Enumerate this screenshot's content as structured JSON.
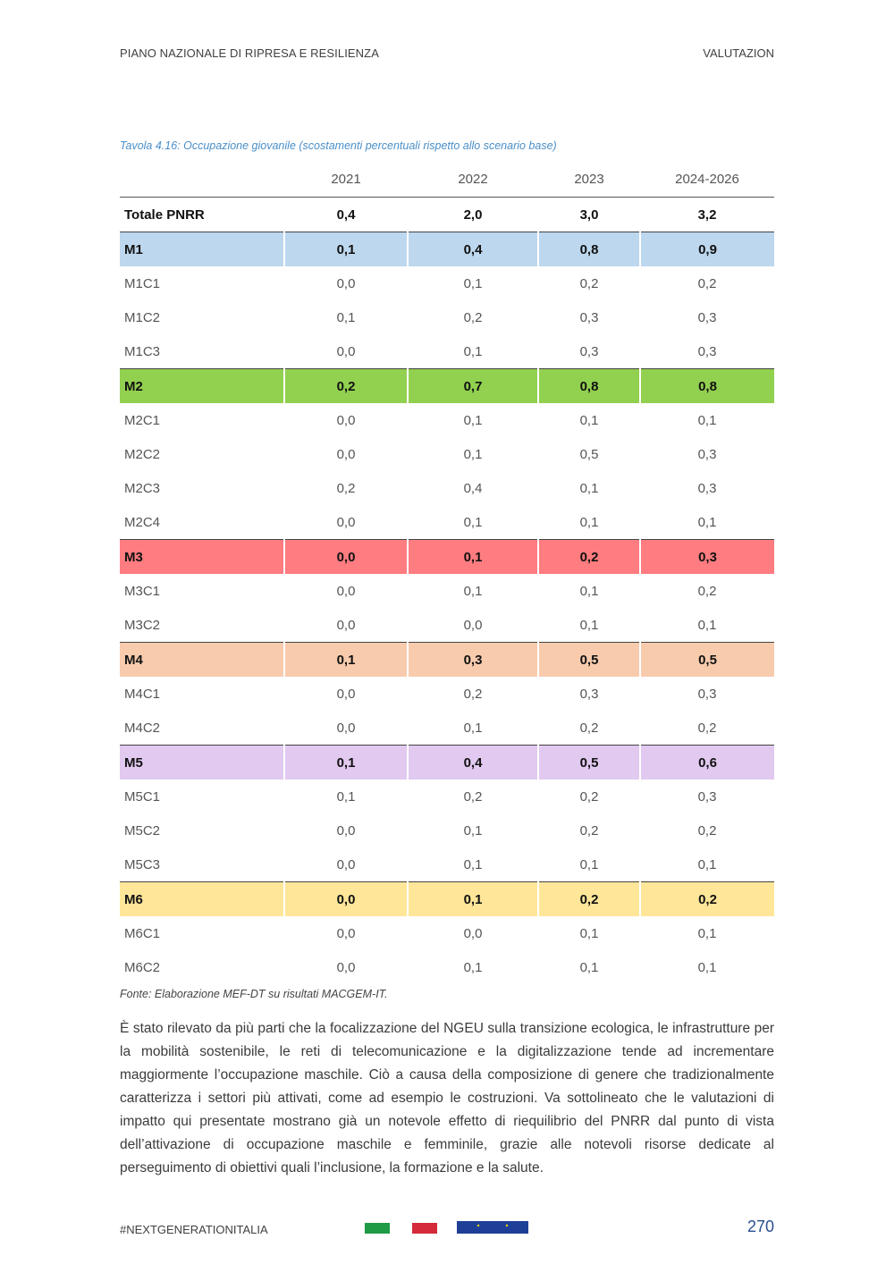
{
  "header": {
    "left": "PIANO NAZIONALE DI RIPRESA E RESILIENZA",
    "right": "VALUTAZION"
  },
  "table": {
    "caption": "Tavola 4.16: Occupazione giovanile (scostamenti percentuali rispetto allo scenario base)",
    "columns": [
      "2021",
      "2022",
      "2023",
      "2024-2026"
    ],
    "total": {
      "label": "Totale PNRR",
      "values": [
        "0,4",
        "2,0",
        "3,0",
        "3,2"
      ]
    },
    "missions": [
      {
        "label": "M1",
        "color": "#bdd7ee",
        "values": [
          "0,1",
          "0,4",
          "0,8",
          "0,9"
        ],
        "rows": [
          {
            "label": "M1C1",
            "values": [
              "0,0",
              "0,1",
              "0,2",
              "0,2"
            ]
          },
          {
            "label": "M1C2",
            "values": [
              "0,1",
              "0,2",
              "0,3",
              "0,3"
            ]
          },
          {
            "label": "M1C3",
            "values": [
              "0,0",
              "0,1",
              "0,3",
              "0,3"
            ]
          }
        ]
      },
      {
        "label": "M2",
        "color": "#92d050",
        "values": [
          "0,2",
          "0,7",
          "0,8",
          "0,8"
        ],
        "rows": [
          {
            "label": "M2C1",
            "values": [
              "0,0",
              "0,1",
              "0,1",
              "0,1"
            ]
          },
          {
            "label": "M2C2",
            "values": [
              "0,0",
              "0,1",
              "0,5",
              "0,3"
            ]
          },
          {
            "label": "M2C3",
            "values": [
              "0,2",
              "0,4",
              "0,1",
              "0,3"
            ]
          },
          {
            "label": "M2C4",
            "values": [
              "0,0",
              "0,1",
              "0,1",
              "0,1"
            ]
          }
        ]
      },
      {
        "label": "M3",
        "color": "#ff7c80",
        "values": [
          "0,0",
          "0,1",
          "0,2",
          "0,3"
        ],
        "rows": [
          {
            "label": "M3C1",
            "values": [
              "0,0",
              "0,1",
              "0,1",
              "0,2"
            ]
          },
          {
            "label": "M3C2",
            "values": [
              "0,0",
              "0,0",
              "0,1",
              "0,1"
            ]
          }
        ]
      },
      {
        "label": "M4",
        "color": "#f8cbad",
        "values": [
          "0,1",
          "0,3",
          "0,5",
          "0,5"
        ],
        "rows": [
          {
            "label": "M4C1",
            "values": [
              "0,0",
              "0,2",
              "0,3",
              "0,3"
            ]
          },
          {
            "label": "M4C2",
            "values": [
              "0,0",
              "0,1",
              "0,2",
              "0,2"
            ]
          }
        ]
      },
      {
        "label": "M5",
        "color": "#e1c9f0",
        "values": [
          "0,1",
          "0,4",
          "0,5",
          "0,6"
        ],
        "rows": [
          {
            "label": "M5C1",
            "values": [
              "0,1",
              "0,2",
              "0,2",
              "0,3"
            ]
          },
          {
            "label": "M5C2",
            "values": [
              "0,0",
              "0,1",
              "0,2",
              "0,2"
            ]
          },
          {
            "label": "M5C3",
            "values": [
              "0,0",
              "0,1",
              "0,1",
              "0,1"
            ]
          }
        ]
      },
      {
        "label": "M6",
        "color": "#ffe699",
        "values": [
          "0,0",
          "0,1",
          "0,2",
          "0,2"
        ],
        "rows": [
          {
            "label": "M6C1",
            "values": [
              "0,0",
              "0,0",
              "0,1",
              "0,1"
            ]
          },
          {
            "label": "M6C2",
            "values": [
              "0,0",
              "0,1",
              "0,1",
              "0,1"
            ]
          }
        ]
      }
    ],
    "source": "Fonte: Elaborazione MEF-DT su risultati MACGEM-IT."
  },
  "body_text": "È stato rilevato da più parti che la focalizzazione del NGEU sulla transizione ecologica, le infrastrutture per la mobilità sostenibile, le reti di telecomunicazione e la digitalizzazione tende ad incrementare maggiormente l’occupazione maschile. Ciò a causa della composizione di genere che tradizionalmente caratterizza i settori più attivati, come ad esempio le costruzioni. Va sottolineato che le valutazioni di impatto qui presentate mostrano già un notevole effetto di riequilibrio del PNRR dal punto di vista dell’attivazione di occupazione maschile e femminile, grazie alle notevoli risorse dedicate al perseguimento di obiettivi quali l’inclusione, la formazione e la salute.",
  "footer": {
    "hashtag": "#NEXTGENERATIONITALIA",
    "page_number": "270",
    "icons": [
      "italian-flag-green-icon",
      "italian-flag-red-icon",
      "eu-flag-icon"
    ],
    "colors": {
      "green": "#1f9a45",
      "red": "#d42a3a",
      "eu_blue": "#1f3f97",
      "eu_star": "#ffd200"
    }
  }
}
